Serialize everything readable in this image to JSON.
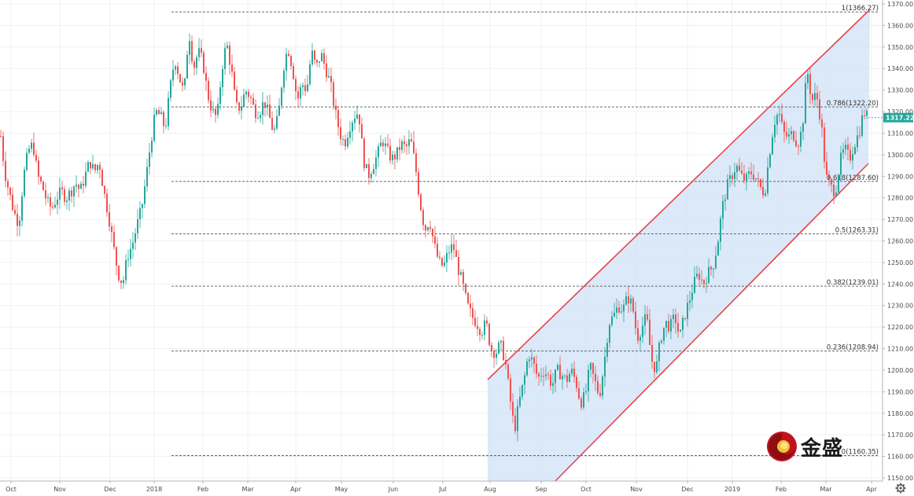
{
  "chart_data": {
    "type": "candlestick",
    "colors": {
      "up": "#26a69a",
      "down": "#ef5350",
      "channel_line": "#e8434b",
      "channel_fill": "#cfe2f7",
      "fib_line": "#555555",
      "last_price_tag": "#26a69a"
    },
    "y_axis": {
      "min": 1148,
      "max": 1372,
      "ticks": [
        1150,
        1160,
        1170,
        1180,
        1190,
        1200,
        1210,
        1220,
        1230,
        1240,
        1250,
        1260,
        1270,
        1280,
        1290,
        1300,
        1310,
        1320,
        1330,
        1340,
        1350,
        1360,
        1370
      ],
      "position": "right"
    },
    "x_axis": {
      "labels": [
        "Oct",
        "Nov",
        "Dec",
        "2018",
        "Feb",
        "Mar",
        "Apr",
        "May",
        "Jun",
        "Jul",
        "Aug",
        "Sep",
        "Oct",
        "Nov",
        "Dec",
        "2019",
        "Feb",
        "Mar",
        "Apr"
      ]
    },
    "last_price": "1317.22",
    "fib_levels": [
      {
        "label": "1(1366.27)",
        "value": 1366.27
      },
      {
        "label": "0.786(1322.20)",
        "value": 1322.2
      },
      {
        "label": "0.618(1287.60)",
        "value": 1287.6
      },
      {
        "label": "0.5(1263.31)",
        "value": 1263.31
      },
      {
        "label": "0.382(1239.01)",
        "value": 1239.01
      },
      {
        "label": "0.236(1208.94)",
        "value": 1208.94
      },
      {
        "label": "0(1160.35)",
        "value": 1160.35
      }
    ],
    "price_path": [
      [
        0,
        1312
      ],
      [
        6,
        1292
      ],
      [
        12,
        1282
      ],
      [
        18,
        1273
      ],
      [
        24,
        1268
      ],
      [
        30,
        1290
      ],
      [
        36,
        1302
      ],
      [
        42,
        1305
      ],
      [
        48,
        1290
      ],
      [
        54,
        1285
      ],
      [
        60,
        1278
      ],
      [
        66,
        1275
      ],
      [
        72,
        1280
      ],
      [
        78,
        1283
      ],
      [
        84,
        1280
      ],
      [
        90,
        1283
      ],
      [
        96,
        1287
      ],
      [
        102,
        1283
      ],
      [
        108,
        1290
      ],
      [
        114,
        1297
      ],
      [
        120,
        1292
      ],
      [
        126,
        1297
      ],
      [
        132,
        1283
      ],
      [
        138,
        1272
      ],
      [
        144,
        1258
      ],
      [
        150,
        1245
      ],
      [
        156,
        1240
      ],
      [
        162,
        1253
      ],
      [
        168,
        1258
      ],
      [
        174,
        1267
      ],
      [
        180,
        1275
      ],
      [
        186,
        1290
      ],
      [
        192,
        1307
      ],
      [
        198,
        1320
      ],
      [
        204,
        1318
      ],
      [
        210,
        1312
      ],
      [
        216,
        1330
      ],
      [
        222,
        1345
      ],
      [
        228,
        1336
      ],
      [
        234,
        1328
      ],
      [
        240,
        1358
      ],
      [
        246,
        1340
      ],
      [
        252,
        1348
      ],
      [
        258,
        1343
      ],
      [
        264,
        1328
      ],
      [
        270,
        1320
      ],
      [
        276,
        1317
      ],
      [
        282,
        1340
      ],
      [
        288,
        1352
      ],
      [
        294,
        1340
      ],
      [
        300,
        1322
      ],
      [
        306,
        1322
      ],
      [
        312,
        1330
      ],
      [
        318,
        1327
      ],
      [
        324,
        1320
      ],
      [
        330,
        1320
      ],
      [
        336,
        1325
      ],
      [
        342,
        1318
      ],
      [
        348,
        1310
      ],
      [
        354,
        1318
      ],
      [
        360,
        1340
      ],
      [
        366,
        1350
      ],
      [
        372,
        1340
      ],
      [
        378,
        1325
      ],
      [
        384,
        1333
      ],
      [
        390,
        1330
      ],
      [
        396,
        1348
      ],
      [
        402,
        1340
      ],
      [
        408,
        1347
      ],
      [
        414,
        1340
      ],
      [
        420,
        1333
      ],
      [
        426,
        1320
      ],
      [
        432,
        1310
      ],
      [
        438,
        1305
      ],
      [
        444,
        1313
      ],
      [
        450,
        1318
      ],
      [
        456,
        1320
      ],
      [
        462,
        1298
      ],
      [
        468,
        1290
      ],
      [
        474,
        1295
      ],
      [
        480,
        1300
      ],
      [
        486,
        1307
      ],
      [
        492,
        1302
      ],
      [
        498,
        1298
      ],
      [
        504,
        1300
      ],
      [
        510,
        1305
      ],
      [
        516,
        1303
      ],
      [
        522,
        1307
      ],
      [
        528,
        1295
      ],
      [
        534,
        1278
      ],
      [
        540,
        1265
      ],
      [
        546,
        1270
      ],
      [
        552,
        1258
      ],
      [
        558,
        1250
      ],
      [
        564,
        1248
      ],
      [
        570,
        1255
      ],
      [
        576,
        1258
      ],
      [
        582,
        1248
      ],
      [
        588,
        1240
      ],
      [
        594,
        1230
      ],
      [
        600,
        1225
      ],
      [
        606,
        1222
      ],
      [
        612,
        1218
      ],
      [
        618,
        1222
      ],
      [
        624,
        1210
      ],
      [
        630,
        1208
      ],
      [
        636,
        1212
      ],
      [
        642,
        1205
      ],
      [
        648,
        1188
      ],
      [
        654,
        1172
      ],
      [
        660,
        1185
      ],
      [
        666,
        1195
      ],
      [
        672,
        1208
      ],
      [
        678,
        1203
      ],
      [
        684,
        1196
      ],
      [
        690,
        1200
      ],
      [
        696,
        1198
      ],
      [
        702,
        1193
      ],
      [
        708,
        1200
      ],
      [
        714,
        1198
      ],
      [
        720,
        1195
      ],
      [
        726,
        1200
      ],
      [
        732,
        1195
      ],
      [
        738,
        1185
      ],
      [
        744,
        1188
      ],
      [
        750,
        1202
      ],
      [
        756,
        1195
      ],
      [
        762,
        1188
      ],
      [
        768,
        1203
      ],
      [
        774,
        1222
      ],
      [
        780,
        1225
      ],
      [
        786,
        1230
      ],
      [
        792,
        1228
      ],
      [
        798,
        1234
      ],
      [
        804,
        1230
      ],
      [
        810,
        1215
      ],
      [
        816,
        1220
      ],
      [
        822,
        1225
      ],
      [
        828,
        1205
      ],
      [
        834,
        1200
      ],
      [
        840,
        1215
      ],
      [
        846,
        1222
      ],
      [
        852,
        1220
      ],
      [
        858,
        1225
      ],
      [
        864,
        1215
      ],
      [
        870,
        1225
      ],
      [
        876,
        1232
      ],
      [
        882,
        1240
      ],
      [
        888,
        1245
      ],
      [
        894,
        1240
      ],
      [
        900,
        1245
      ],
      [
        906,
        1248
      ],
      [
        912,
        1258
      ],
      [
        918,
        1275
      ],
      [
        924,
        1285
      ],
      [
        930,
        1290
      ],
      [
        936,
        1295
      ],
      [
        942,
        1290
      ],
      [
        948,
        1288
      ],
      [
        954,
        1292
      ],
      [
        960,
        1290
      ],
      [
        966,
        1285
      ],
      [
        972,
        1282
      ],
      [
        978,
        1300
      ],
      [
        984,
        1315
      ],
      [
        990,
        1320
      ],
      [
        996,
        1310
      ],
      [
        1002,
        1308
      ],
      [
        1008,
        1310
      ],
      [
        1014,
        1305
      ],
      [
        1020,
        1312
      ],
      [
        1026,
        1340
      ],
      [
        1032,
        1325
      ],
      [
        1038,
        1328
      ],
      [
        1044,
        1315
      ],
      [
        1050,
        1290
      ],
      [
        1056,
        1285
      ],
      [
        1062,
        1283
      ],
      [
        1068,
        1297
      ],
      [
        1074,
        1303
      ],
      [
        1080,
        1298
      ],
      [
        1086,
        1305
      ],
      [
        1092,
        1310
      ],
      [
        1098,
        1320
      ],
      [
        1104,
        1317
      ]
    ]
  },
  "logo": {
    "text": "金盛",
    "icon": "swirl-logo-icon"
  },
  "toolbar": {
    "settings_icon": "gear-icon"
  }
}
